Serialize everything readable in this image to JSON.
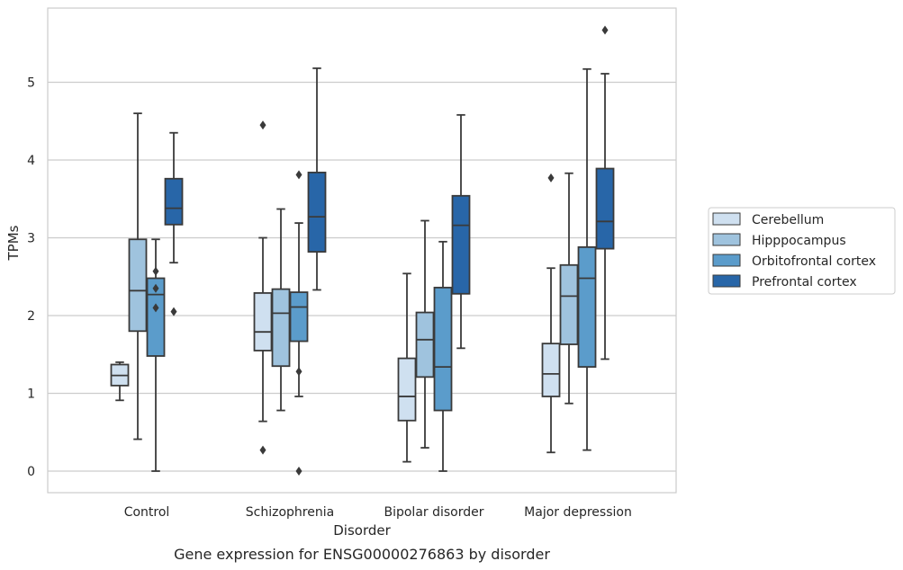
{
  "chart_data": {
    "type": "box",
    "caption": "Gene expression for ENSG00000276863 by disorder",
    "xlabel": "Disorder",
    "ylabel": "TPMs",
    "ylim": [
      -0.27,
      5.95
    ],
    "yticks": [
      "0",
      "1",
      "2",
      "3",
      "4",
      "5"
    ],
    "grid": "horizontal",
    "legend_position": "right",
    "categories": [
      "Control",
      "Schizophrenia",
      "Bipolar disorder",
      "Major depression"
    ],
    "series": [
      {
        "name": "Cerebellum",
        "color": "#cfe0f0",
        "boxes": [
          {
            "whislo": 0.91,
            "q1": 1.1,
            "med": 1.23,
            "q3": 1.37,
            "whishi": 1.4,
            "fliers": []
          },
          {
            "whislo": 0.64,
            "q1": 1.55,
            "med": 1.79,
            "q3": 2.29,
            "whishi": 3.0,
            "fliers": [
              0.27,
              4.45
            ]
          },
          {
            "whislo": 0.12,
            "q1": 0.65,
            "med": 0.96,
            "q3": 1.45,
            "whishi": 2.54,
            "fliers": []
          },
          {
            "whislo": 0.24,
            "q1": 0.96,
            "med": 1.25,
            "q3": 1.64,
            "whishi": 2.61,
            "fliers": [
              3.77
            ]
          }
        ]
      },
      {
        "name": "Hipppocampus",
        "color": "#9fc3de",
        "boxes": [
          {
            "whislo": 0.41,
            "q1": 1.8,
            "med": 2.32,
            "q3": 2.98,
            "whishi": 4.6,
            "fliers": []
          },
          {
            "whislo": 0.78,
            "q1": 1.35,
            "med": 2.03,
            "q3": 2.34,
            "whishi": 3.37,
            "fliers": []
          },
          {
            "whislo": 0.3,
            "q1": 1.21,
            "med": 1.69,
            "q3": 2.04,
            "whishi": 3.22,
            "fliers": []
          },
          {
            "whislo": 0.87,
            "q1": 1.63,
            "med": 2.25,
            "q3": 2.65,
            "whishi": 3.83,
            "fliers": []
          }
        ]
      },
      {
        "name": "Orbitofrontal cortex",
        "color": "#5b9ccb",
        "boxes": [
          {
            "whislo": 0.0,
            "q1": 1.48,
            "med": 2.27,
            "q3": 2.48,
            "whishi": 2.98,
            "fliers": [
              2.1,
              2.35,
              2.57
            ]
          },
          {
            "whislo": 0.96,
            "q1": 1.67,
            "med": 2.11,
            "q3": 2.3,
            "whishi": 3.19,
            "fliers": [
              0.0,
              1.28,
              3.81
            ]
          },
          {
            "whislo": 0.0,
            "q1": 0.78,
            "med": 1.34,
            "q3": 2.36,
            "whishi": 2.95,
            "fliers": []
          },
          {
            "whislo": 0.27,
            "q1": 1.34,
            "med": 2.48,
            "q3": 2.88,
            "whishi": 5.17,
            "fliers": []
          }
        ]
      },
      {
        "name": "Prefrontal cortex",
        "color": "#2866a8",
        "boxes": [
          {
            "whislo": 2.68,
            "q1": 3.17,
            "med": 3.38,
            "q3": 3.76,
            "whishi": 4.35,
            "fliers": [
              2.05
            ]
          },
          {
            "whislo": 2.33,
            "q1": 2.82,
            "med": 3.27,
            "q3": 3.84,
            "whishi": 5.18,
            "fliers": []
          },
          {
            "whislo": 1.58,
            "q1": 2.28,
            "med": 3.16,
            "q3": 3.54,
            "whishi": 4.58,
            "fliers": []
          },
          {
            "whislo": 1.44,
            "q1": 2.86,
            "med": 3.21,
            "q3": 3.89,
            "whishi": 5.11,
            "fliers": [
              5.67
            ]
          }
        ]
      }
    ]
  }
}
